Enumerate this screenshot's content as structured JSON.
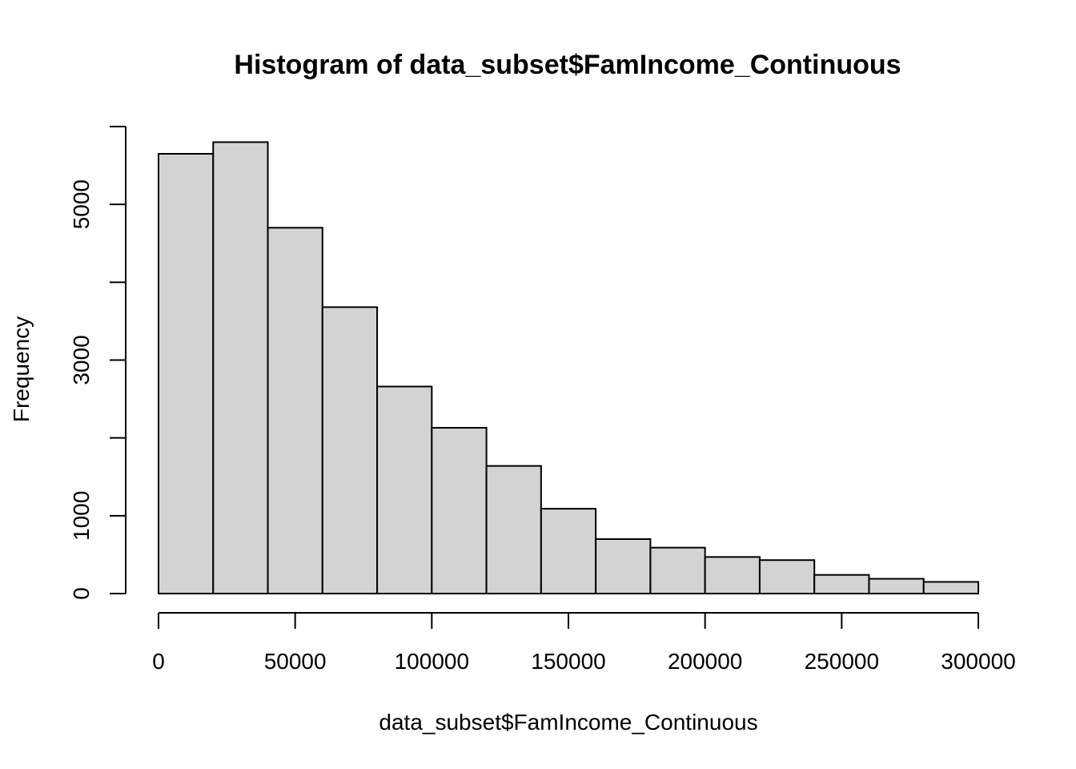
{
  "chart_data": {
    "type": "bar",
    "title": "Histogram of data_subset$FamIncome_Continuous",
    "xlabel": "data_subset$FamIncome_Continuous",
    "ylabel": "Frequency",
    "bin_edges": [
      0,
      20000,
      40000,
      60000,
      80000,
      100000,
      120000,
      140000,
      160000,
      180000,
      200000,
      220000,
      240000,
      260000,
      280000,
      300000
    ],
    "values": [
      5650,
      5800,
      4700,
      3680,
      2660,
      2130,
      1640,
      1090,
      700,
      590,
      470,
      430,
      240,
      190,
      150
    ],
    "x_ticks": [
      0,
      50000,
      100000,
      150000,
      200000,
      250000,
      300000
    ],
    "x_tick_labels": [
      "0",
      "50000",
      "100000",
      "150000",
      "200000",
      "250000",
      "300000"
    ],
    "y_ticks": [
      0,
      1000,
      2000,
      3000,
      4000,
      5000,
      6000
    ],
    "y_tick_labels": [
      "0",
      "1000",
      "",
      "3000",
      "",
      "5000",
      ""
    ],
    "xlim": [
      0,
      300000
    ],
    "ylim": [
      0,
      6000
    ],
    "bar_color": "#d3d3d3",
    "grid": false
  }
}
